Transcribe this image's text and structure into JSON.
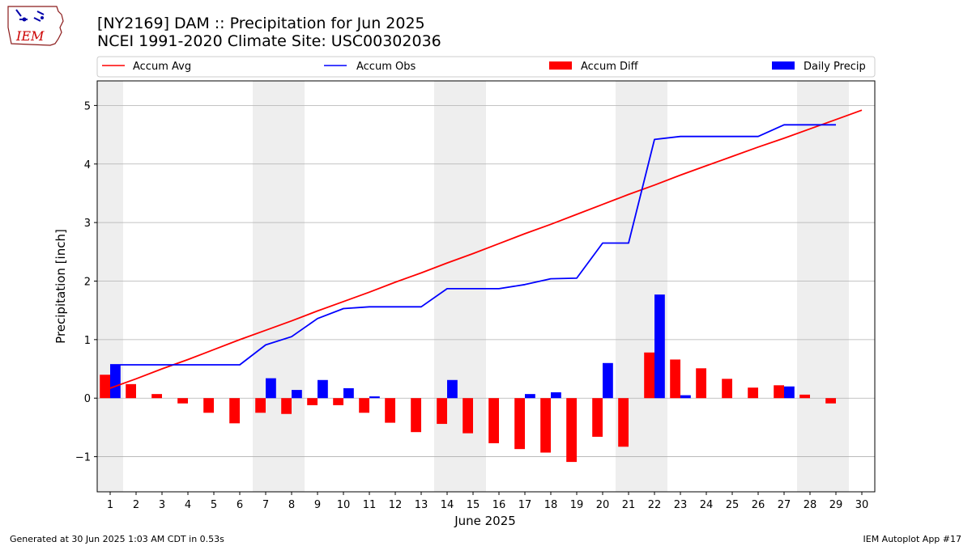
{
  "header": {
    "title_line1": "[NY2169] DAM :: Precipitation for Jun 2025",
    "title_line2": "NCEI 1991-2020 Climate Site: USC00302036",
    "logo_text": "IEM"
  },
  "footer": {
    "generated": "Generated at 30 Jun 2025 1:03 AM CDT in 0.53s",
    "app": "IEM Autoplot App #17"
  },
  "colors": {
    "accum_avg": "#ff0000",
    "accum_obs": "#0000ff",
    "accum_diff": "#ff0000",
    "daily_precip": "#0000ff",
    "weekend_shade": "#eeeeee",
    "grid": "#b0b0b0"
  },
  "chart_data": {
    "type": "bar",
    "xlabel": "June 2025",
    "ylabel": "Precipitation [inch]",
    "ylim": [
      -1.6,
      5.42
    ],
    "yticks": [
      -1,
      0,
      1,
      2,
      3,
      4,
      5
    ],
    "ytick_labels": [
      "−1",
      "0",
      "1",
      "2",
      "3",
      "4",
      "5"
    ],
    "categories": [
      "1",
      "2",
      "3",
      "4",
      "5",
      "6",
      "7",
      "8",
      "9",
      "10",
      "11",
      "12",
      "13",
      "14",
      "15",
      "16",
      "17",
      "18",
      "19",
      "20",
      "21",
      "22",
      "23",
      "24",
      "25",
      "26",
      "27",
      "28",
      "29",
      "30"
    ],
    "grid": "horizontal",
    "legend_placement": "top",
    "legend": [
      "Accum Avg",
      "Accum Obs",
      "Accum Diff",
      "Daily Precip"
    ],
    "weekend_days": [
      1,
      7,
      8,
      14,
      15,
      21,
      22,
      28,
      29
    ],
    "series": [
      {
        "name": "Accum Avg",
        "kind": "line",
        "x": [
          1,
          2,
          3,
          4,
          5,
          6,
          7,
          8,
          9,
          10,
          11,
          12,
          13,
          14,
          15,
          16,
          17,
          18,
          19,
          20,
          21,
          22,
          23,
          24,
          25,
          26,
          27,
          28,
          29,
          30
        ],
        "values": [
          0.17,
          0.33,
          0.5,
          0.66,
          0.83,
          1.0,
          1.16,
          1.32,
          1.49,
          1.65,
          1.81,
          1.98,
          2.14,
          2.31,
          2.47,
          2.64,
          2.81,
          2.97,
          3.14,
          3.31,
          3.48,
          3.64,
          3.81,
          3.97,
          4.13,
          4.29,
          4.44,
          4.6,
          4.76,
          4.92
        ]
      },
      {
        "name": "Accum Obs",
        "kind": "line",
        "x": [
          1,
          2,
          3,
          4,
          5,
          6,
          7,
          8,
          9,
          10,
          11,
          12,
          13,
          14,
          15,
          16,
          17,
          18,
          19,
          20,
          21,
          22,
          23,
          24,
          25,
          26,
          27,
          28,
          29
        ],
        "values": [
          0.57,
          0.57,
          0.57,
          0.57,
          0.57,
          0.57,
          0.91,
          1.05,
          1.36,
          1.53,
          1.56,
          1.56,
          1.56,
          1.87,
          1.87,
          1.87,
          1.94,
          2.04,
          2.05,
          2.65,
          2.65,
          4.42,
          4.47,
          4.47,
          4.47,
          4.47,
          4.67,
          4.67,
          4.67
        ]
      },
      {
        "name": "Accum Diff",
        "kind": "bar",
        "x": [
          1,
          2,
          3,
          4,
          5,
          6,
          7,
          8,
          9,
          10,
          11,
          12,
          13,
          14,
          15,
          16,
          17,
          18,
          19,
          20,
          21,
          22,
          23,
          24,
          25,
          26,
          27,
          28,
          29
        ],
        "values": [
          0.4,
          0.24,
          0.07,
          -0.09,
          -0.25,
          -0.43,
          -0.25,
          -0.27,
          -0.12,
          -0.12,
          -0.25,
          -0.42,
          -0.58,
          -0.44,
          -0.6,
          -0.77,
          -0.87,
          -0.93,
          -1.09,
          -0.66,
          -0.83,
          0.78,
          0.66,
          0.51,
          0.33,
          0.18,
          0.22,
          0.06,
          -0.09
        ]
      },
      {
        "name": "Daily Precip",
        "kind": "bar",
        "x": [
          1,
          2,
          3,
          4,
          5,
          6,
          7,
          8,
          9,
          10,
          11,
          12,
          13,
          14,
          15,
          16,
          17,
          18,
          19,
          20,
          21,
          22,
          23,
          24,
          25,
          26,
          27,
          28,
          29
        ],
        "values": [
          0.57,
          0,
          0,
          0,
          0,
          0,
          0.34,
          0.14,
          0.31,
          0.17,
          0.03,
          0,
          0,
          0.31,
          0,
          0,
          0.07,
          0.1,
          0,
          0.6,
          0,
          1.77,
          0.05,
          0,
          0,
          0,
          0.2,
          0,
          0
        ]
      }
    ]
  }
}
